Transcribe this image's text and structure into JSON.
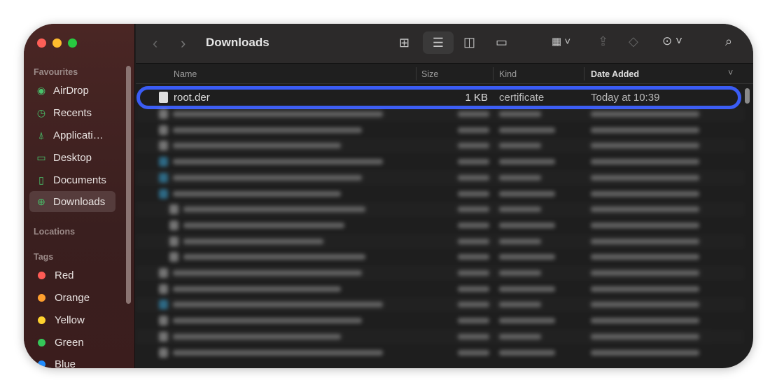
{
  "window": {
    "title": "Downloads"
  },
  "sidebar": {
    "favourites_label": "Favourites",
    "favourites": [
      {
        "label": "AirDrop",
        "icon": "airdrop-icon"
      },
      {
        "label": "Recents",
        "icon": "clock-icon"
      },
      {
        "label": "Applicati…",
        "icon": "applications-icon"
      },
      {
        "label": "Desktop",
        "icon": "desktop-icon"
      },
      {
        "label": "Documents",
        "icon": "document-icon"
      },
      {
        "label": "Downloads",
        "icon": "download-icon",
        "selected": true
      }
    ],
    "locations_label": "Locations",
    "tags_label": "Tags",
    "tags": [
      {
        "label": "Red",
        "color": "#fe5b55"
      },
      {
        "label": "Orange",
        "color": "#ffa02e"
      },
      {
        "label": "Yellow",
        "color": "#ffd22e"
      },
      {
        "label": "Green",
        "color": "#35c759"
      },
      {
        "label": "Blue",
        "color": "#1f8cff"
      }
    ]
  },
  "columns": {
    "name": "Name",
    "size": "Size",
    "kind": "Kind",
    "date": "Date Added"
  },
  "files": [
    {
      "name": "root.der",
      "size": "1 KB",
      "kind": "certificate",
      "date": "Today at 10:39"
    }
  ],
  "highlight_color": "#3a5cf5"
}
